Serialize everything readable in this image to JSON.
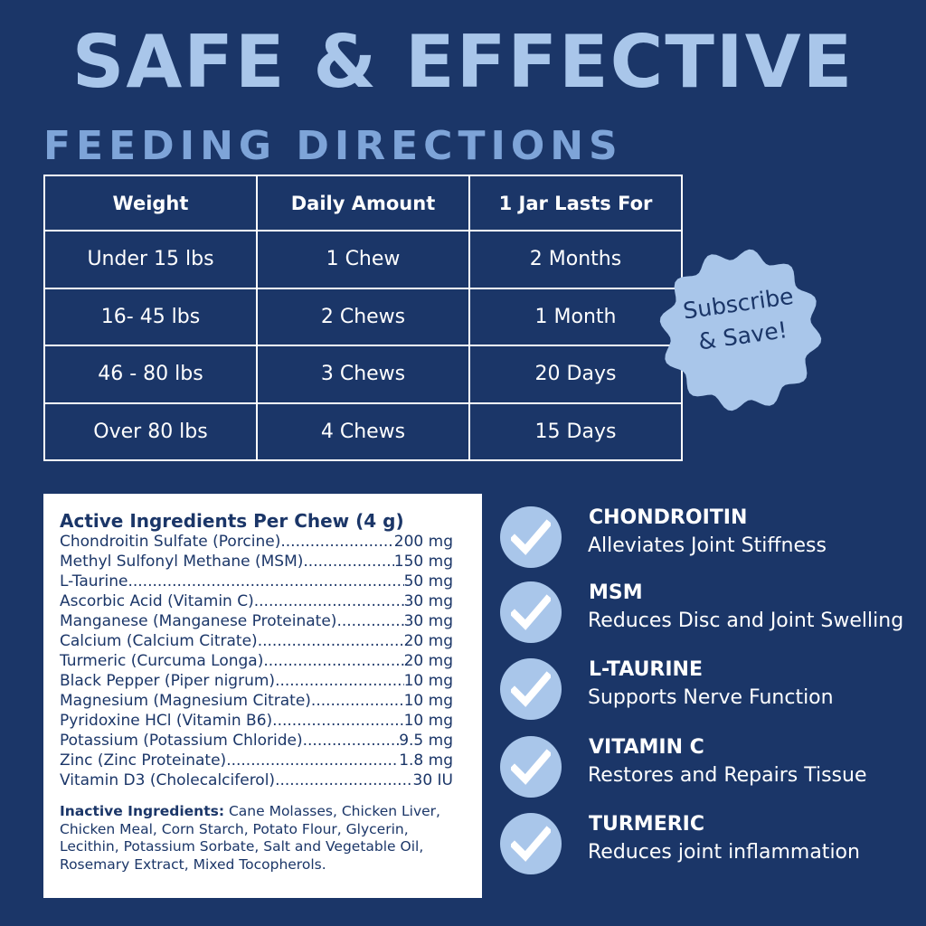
{
  "title": "SAFE & EFFECTIVE",
  "subtitle": "FEEDING DIRECTIONS",
  "feeding_table": {
    "headers": [
      "Weight",
      "Daily Amount",
      "1 Jar Lasts For"
    ],
    "rows": [
      [
        "Under 15 lbs",
        "1 Chew",
        "2 Months"
      ],
      [
        "16-  45 lbs",
        "2 Chews",
        "1 Month"
      ],
      [
        "46 - 80 lbs",
        "3 Chews",
        "20 Days"
      ],
      [
        "Over 80 lbs",
        "4 Chews",
        "15 Days"
      ]
    ]
  },
  "badge": {
    "line1": "Subscribe",
    "line2": "& Save!"
  },
  "ingredients": {
    "heading": "Active Ingredients Per Chew (4 g)",
    "items": [
      {
        "name": "Chondroitin Sulfate (Porcine)",
        "amount": "200 mg"
      },
      {
        "name": "Methyl Sulfonyl Methane (MSM)",
        "amount": "150 mg"
      },
      {
        "name": "L-Taurine",
        "amount": "50 mg"
      },
      {
        "name": "Ascorbic Acid (Vitamin C)",
        "amount": "30 mg"
      },
      {
        "name": "Manganese (Manganese Proteinate)",
        "amount": "30 mg"
      },
      {
        "name": "Calcium (Calcium Citrate)",
        "amount": "20 mg"
      },
      {
        "name": "Turmeric (Curcuma Longa)",
        "amount": "20 mg"
      },
      {
        "name": "Black Pepper (Piper nigrum)",
        "amount": "10 mg"
      },
      {
        "name": "Magnesium (Magnesium Citrate)",
        "amount": "10 mg"
      },
      {
        "name": "Pyridoxine HCl (Vitamin B6)",
        "amount": "10 mg"
      },
      {
        "name": "Potassium (Potassium Chloride)",
        "amount": "9.5 mg"
      },
      {
        "name": "Zinc (Zinc Proteinate)",
        "amount": "1.8 mg"
      },
      {
        "name": "Vitamin D3 (Cholecalciferol)",
        "amount": "30 IU"
      }
    ],
    "inactive_label": "Inactive Ingredients:",
    "inactive_text": " Cane Molasses, Chicken Liver, Chicken Meal, Corn Starch, Potato Flour, Glycerin, Lecithin, Potassium Sorbate, Salt and Vegetable Oil, Rosemary Extract, Mixed Tocopherols."
  },
  "benefits": [
    {
      "name": "CHONDROITIN",
      "desc": "Alleviates Joint Stiffness",
      "icon": "check-icon"
    },
    {
      "name": "MSM",
      "desc": "Reduces Disc and Joint Swelling",
      "icon": "check-icon"
    },
    {
      "name": "L-TAURINE",
      "desc": "Supports Nerve Function",
      "icon": "check-icon"
    },
    {
      "name": "VITAMIN C",
      "desc": "Restores and Repairs Tissue",
      "icon": "check-icon"
    },
    {
      "name": "TURMERIC",
      "desc": "Reduces joint inflammation",
      "icon": "check-icon"
    }
  ],
  "colors": {
    "background": "#1b3668",
    "title": "#a9c6ea",
    "subtitle": "#7ea4d8",
    "accent": "#a9c6ea"
  }
}
